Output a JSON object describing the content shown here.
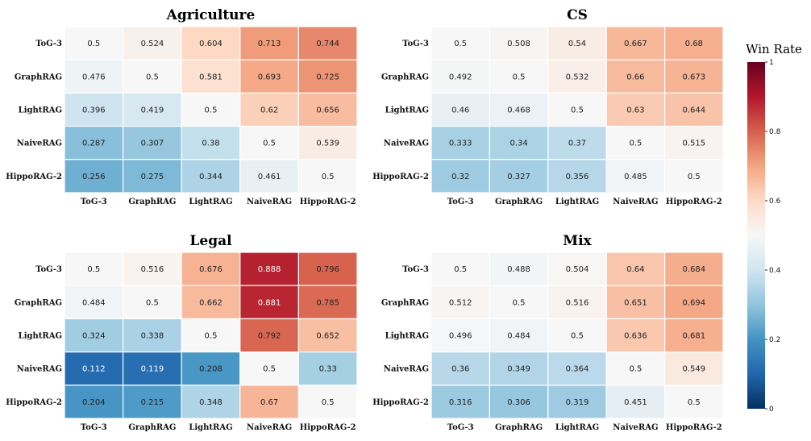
{
  "chart_data": {
    "type": "heatmap",
    "colorbar": {
      "title": "Win Rate",
      "ticks": [
        "0",
        "0.2",
        "0.4",
        "0.6",
        "0.8",
        "1"
      ],
      "range": [
        0,
        1
      ],
      "colormap": "RdBu_r"
    },
    "panels": [
      {
        "title": "Agriculture",
        "rows": [
          "ToG-3",
          "GraphRAG",
          "LightRAG",
          "NaiveRAG",
          "HippoRAG-2"
        ],
        "cols": [
          "ToG-3",
          "GraphRAG",
          "LightRAG",
          "NaiveRAG",
          "HippoRAG-2"
        ],
        "values": [
          [
            "0.5",
            "0.524",
            "0.604",
            "0.713",
            "0.744"
          ],
          [
            "0.476",
            "0.5",
            "0.581",
            "0.693",
            "0.725"
          ],
          [
            "0.396",
            "0.419",
            "0.5",
            "0.62",
            "0.656"
          ],
          [
            "0.287",
            "0.307",
            "0.38",
            "0.5",
            "0.539"
          ],
          [
            "0.256",
            "0.275",
            "0.344",
            "0.461",
            "0.5"
          ]
        ]
      },
      {
        "title": "CS",
        "rows": [
          "ToG-3",
          "GraphRAG",
          "LightRAG",
          "NaiveRAG",
          "HippoRAG-2"
        ],
        "cols": [
          "ToG-3",
          "GraphRAG",
          "LightRAG",
          "NaiveRAG",
          "HippoRAG-2"
        ],
        "values": [
          [
            "0.5",
            "0.508",
            "0.54",
            "0.667",
            "0.68"
          ],
          [
            "0.492",
            "0.5",
            "0.532",
            "0.66",
            "0.673"
          ],
          [
            "0.46",
            "0.468",
            "0.5",
            "0.63",
            "0.644"
          ],
          [
            "0.333",
            "0.34",
            "0.37",
            "0.5",
            "0.515"
          ],
          [
            "0.32",
            "0.327",
            "0.356",
            "0.485",
            "0.5"
          ]
        ]
      },
      {
        "title": "Legal",
        "rows": [
          "ToG-3",
          "GraphRAG",
          "LightRAG",
          "NaiveRAG",
          "HippoRAG-2"
        ],
        "cols": [
          "ToG-3",
          "GraphRAG",
          "LightRAG",
          "NaiveRAG",
          "HippoRAG-2"
        ],
        "values": [
          [
            "0.5",
            "0.516",
            "0.676",
            "0.888",
            "0.796"
          ],
          [
            "0.484",
            "0.5",
            "0.662",
            "0.881",
            "0.785"
          ],
          [
            "0.324",
            "0.338",
            "0.5",
            "0.792",
            "0.652"
          ],
          [
            "0.112",
            "0.119",
            "0.208",
            "0.5",
            "0.33"
          ],
          [
            "0.204",
            "0.215",
            "0.348",
            "0.67",
            "0.5"
          ]
        ]
      },
      {
        "title": "Mix",
        "rows": [
          "ToG-3",
          "GraphRAG",
          "LightRAG",
          "NaiveRAG",
          "HippoRAG-2"
        ],
        "cols": [
          "ToG-3",
          "GraphRAG",
          "LightRAG",
          "NaiveRAG",
          "HippoRAG-2"
        ],
        "values": [
          [
            "0.5",
            "0.488",
            "0.504",
            "0.64",
            "0.684"
          ],
          [
            "0.512",
            "0.5",
            "0.516",
            "0.651",
            "0.694"
          ],
          [
            "0.496",
            "0.484",
            "0.5",
            "0.636",
            "0.681"
          ],
          [
            "0.36",
            "0.349",
            "0.364",
            "0.5",
            "0.549"
          ],
          [
            "0.316",
            "0.306",
            "0.319",
            "0.451",
            "0.5"
          ]
        ]
      }
    ]
  }
}
